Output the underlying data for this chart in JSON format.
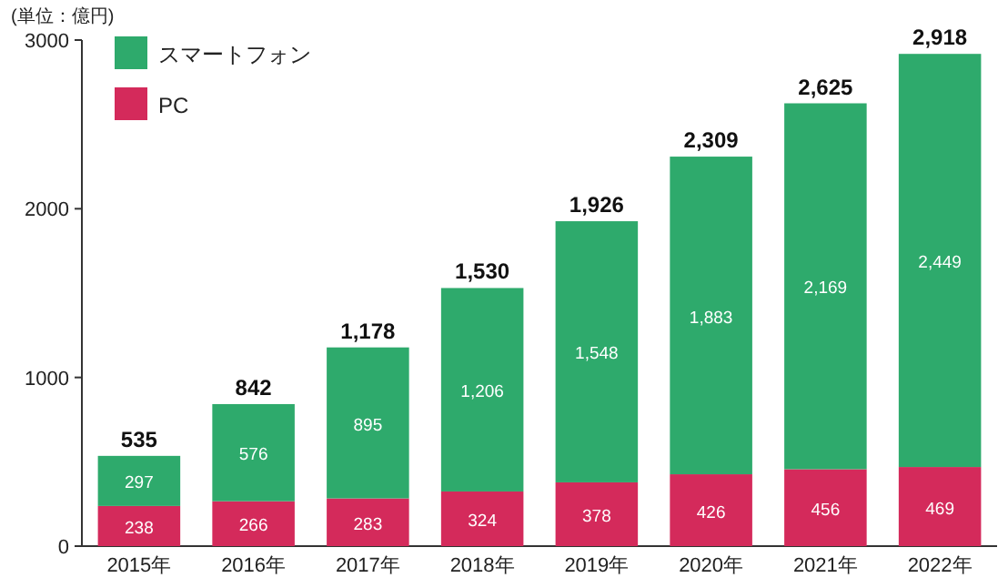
{
  "chart_data": {
    "type": "bar",
    "stacked": true,
    "ylabel": "(単位：億円)",
    "categories": [
      "2015年",
      "2016年",
      "2017年",
      "2018年",
      "2019年",
      "2020年",
      "2021年",
      "2022年"
    ],
    "series": [
      {
        "name": "PC",
        "color": "#d42a5b",
        "values": [
          238,
          266,
          283,
          324,
          378,
          426,
          456,
          469
        ],
        "value_labels": [
          "238",
          "266",
          "283",
          "324",
          "378",
          "426",
          "456",
          "469"
        ]
      },
      {
        "name": "スマートフォン",
        "color": "#2eaa6c",
        "values": [
          297,
          576,
          895,
          1206,
          1548,
          1883,
          2169,
          2449
        ],
        "value_labels": [
          "297",
          "576",
          "895",
          "1,206",
          "1,548",
          "1,883",
          "2,169",
          "2,449"
        ]
      }
    ],
    "totals": [
      "535",
      "842",
      "1,178",
      "1,530",
      "1,926",
      "2,309",
      "2,625",
      "2,918"
    ],
    "ylim": [
      0,
      3000
    ],
    "yticks": [
      0,
      1000,
      2000,
      3000
    ],
    "grid": false,
    "legend": "top left"
  }
}
